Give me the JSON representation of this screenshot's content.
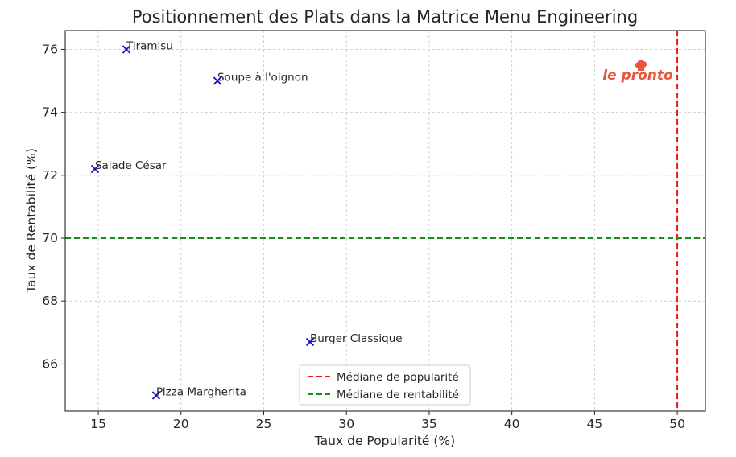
{
  "chart_data": {
    "type": "scatter",
    "title": "Positionnement des Plats dans la Matrice Menu Engineering",
    "xlabel": "Taux de Popularité (%)",
    "ylabel": "Taux de Rentabilité (%)",
    "xlim": [
      13,
      51.7
    ],
    "ylim": [
      64.5,
      76.6
    ],
    "xticks": [
      15,
      20,
      25,
      30,
      35,
      40,
      45,
      50
    ],
    "yticks": [
      66,
      68,
      70,
      72,
      74,
      76
    ],
    "grid": true,
    "marker": "x",
    "marker_color": "#1010c8",
    "points": [
      {
        "label": "Tiramisu",
        "x": 16.7,
        "y": 76.0
      },
      {
        "label": "Soupe à l'oignon",
        "x": 22.2,
        "y": 75.0
      },
      {
        "label": "Salade César",
        "x": 14.8,
        "y": 72.2
      },
      {
        "label": "Burger Classique",
        "x": 27.8,
        "y": 66.7
      },
      {
        "label": "Pizza Margherita",
        "x": 18.5,
        "y": 65.0
      }
    ],
    "reference_lines": [
      {
        "name": "Médiane de popularité",
        "orientation": "vertical",
        "value": 50,
        "color": "#e41a1c"
      },
      {
        "name": "Médiane de rentabilité",
        "orientation": "horizontal",
        "value": 70,
        "color": "#1a8c1a"
      }
    ],
    "legend_position": "bottom-center"
  },
  "logo": {
    "text": "le pronto",
    "color": "#e8553f",
    "icon": "chef-hat-icon"
  }
}
